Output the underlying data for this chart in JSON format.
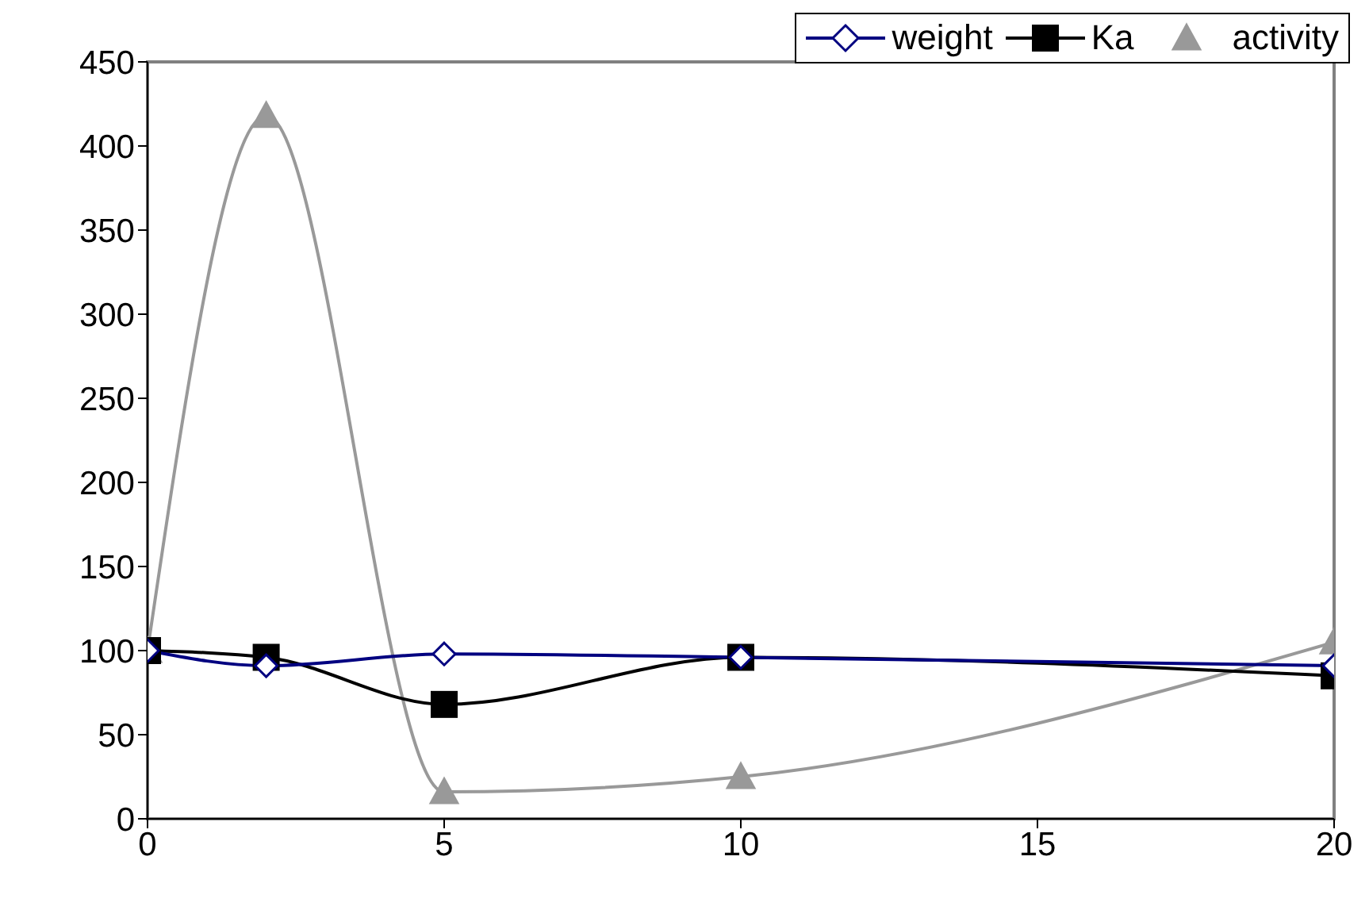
{
  "chart_data": {
    "type": "line",
    "x": [
      0,
      2,
      5,
      10,
      20
    ],
    "series": [
      {
        "name": "weight",
        "color": "#000080",
        "values": [
          100,
          91,
          98,
          96,
          91
        ],
        "marker": "diamond"
      },
      {
        "name": "Ka",
        "color": "#000000",
        "values": [
          100,
          96,
          68,
          96,
          85
        ],
        "marker": "square"
      },
      {
        "name": "activity",
        "color": "#999999",
        "values": [
          100,
          418,
          16,
          25,
          105
        ],
        "marker": "triangle"
      }
    ],
    "xlim": [
      0,
      20
    ],
    "xticks": [
      0,
      5,
      10,
      15,
      20
    ],
    "ylim": [
      0,
      450
    ],
    "yticks": [
      0,
      50,
      100,
      150,
      200,
      250,
      300,
      350,
      400,
      450
    ],
    "grid": false,
    "legend": "top right"
  }
}
